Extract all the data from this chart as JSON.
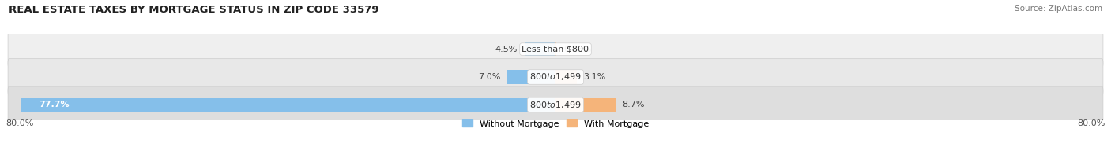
{
  "title": "REAL ESTATE TAXES BY MORTGAGE STATUS IN ZIP CODE 33579",
  "source": "Source: ZipAtlas.com",
  "rows": [
    {
      "label_center": "Less than $800",
      "without_mortgage": 4.5,
      "with_mortgage": 0.13
    },
    {
      "label_center": "$800 to $1,499",
      "without_mortgage": 7.0,
      "with_mortgage": 3.1
    },
    {
      "label_center": "$800 to $1,499",
      "without_mortgage": 77.7,
      "with_mortgage": 8.7
    }
  ],
  "xlim_left": -80.0,
  "xlim_right": 80.0,
  "x_left_label": "80.0%",
  "x_right_label": "80.0%",
  "color_without": "#85BFEA",
  "color_with": "#F5B47A",
  "row_bg_colors": [
    "#EFEFEF",
    "#E8E8E8",
    "#DEDEDE"
  ],
  "bar_height": 0.62,
  "legend_without": "Without Mortgage",
  "legend_with": "With Mortgage",
  "title_fontsize": 9.5,
  "source_fontsize": 7.5,
  "label_fontsize": 8,
  "tick_fontsize": 8
}
